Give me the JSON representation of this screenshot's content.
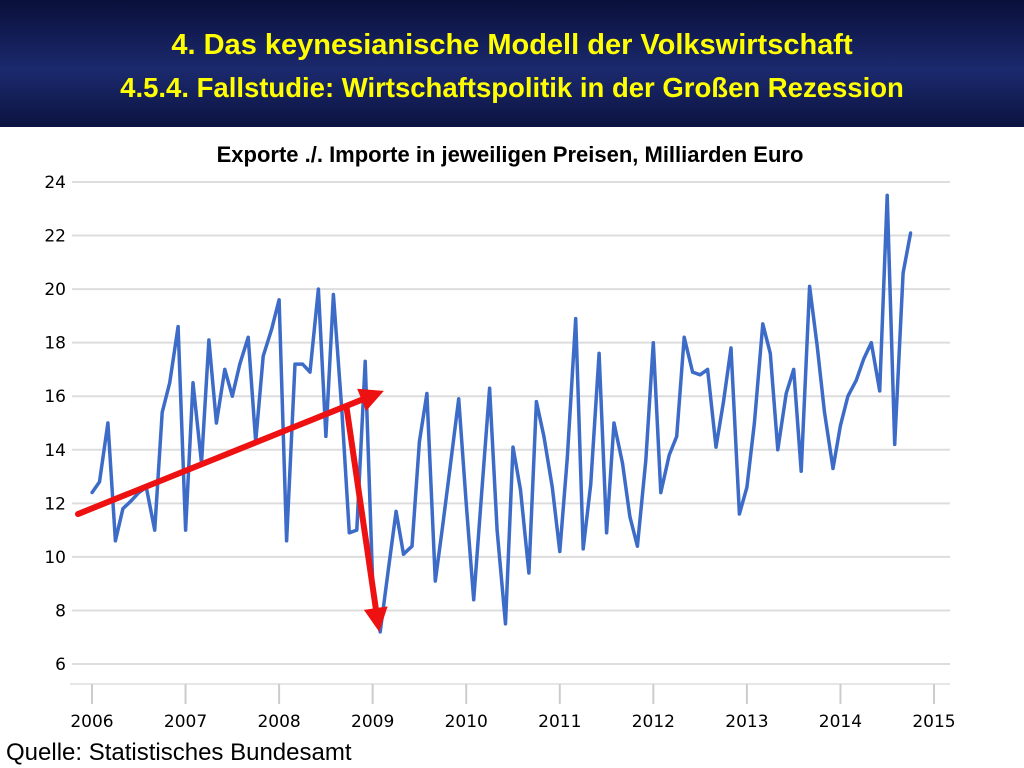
{
  "header": {
    "title": "4. Das keynesianische Modell der Volkswirtschaft",
    "subtitle": "4.5.4.  Fallstudie: Wirtschaftspolitik in der Großen Rezession"
  },
  "footer": {
    "source": "Quelle: Statistisches Bundesamt"
  },
  "colors": {
    "series": "#3d6cc8",
    "arrow": "#ee1111",
    "header_text": "#ffff00",
    "grid": "#dddddd"
  },
  "chart_data": {
    "type": "line",
    "title": "Exporte ./. Importe in jeweiligen Preisen, Milliarden Euro",
    "xlabel": "",
    "ylabel": "",
    "xlim": [
      2006,
      2015
    ],
    "ylim": [
      6,
      24
    ],
    "grid": "horizontal",
    "yticks": [
      6,
      8,
      10,
      12,
      14,
      16,
      18,
      20,
      22,
      24
    ],
    "xticks": [
      2006,
      2007,
      2008,
      2009,
      2010,
      2011,
      2012,
      2013,
      2014,
      2015
    ],
    "series": [
      {
        "name": "",
        "x": [
          2006.0,
          2006.08,
          2006.17,
          2006.25,
          2006.33,
          2006.42,
          2006.5,
          2006.58,
          2006.67,
          2006.75,
          2006.83,
          2006.92,
          2007.0,
          2007.08,
          2007.17,
          2007.25,
          2007.33,
          2007.42,
          2007.5,
          2007.58,
          2007.67,
          2007.75,
          2007.83,
          2007.92,
          2008.0,
          2008.08,
          2008.17,
          2008.25,
          2008.33,
          2008.42,
          2008.5,
          2008.58,
          2008.67,
          2008.75,
          2008.83,
          2008.92,
          2009.0,
          2009.08,
          2009.17,
          2009.25,
          2009.33,
          2009.42,
          2009.5,
          2009.58,
          2009.67,
          2009.75,
          2009.83,
          2009.92,
          2010.0,
          2010.08,
          2010.17,
          2010.25,
          2010.33,
          2010.42,
          2010.5,
          2010.58,
          2010.67,
          2010.75,
          2010.83,
          2010.92,
          2011.0,
          2011.08,
          2011.17,
          2011.25,
          2011.33,
          2011.42,
          2011.5,
          2011.58,
          2011.67,
          2011.75,
          2011.83,
          2011.92,
          2012.0,
          2012.08,
          2012.17,
          2012.25,
          2012.33,
          2012.42,
          2012.5,
          2012.58,
          2012.67,
          2012.75,
          2012.83,
          2012.92,
          2013.0,
          2013.08,
          2013.17,
          2013.25,
          2013.33,
          2013.42,
          2013.5,
          2013.58,
          2013.67,
          2013.75,
          2013.83,
          2013.92,
          2014.0,
          2014.08,
          2014.17,
          2014.25,
          2014.33,
          2014.42,
          2014.5,
          2014.58,
          2014.67,
          2014.75
        ],
        "y": [
          12.4,
          12.8,
          15.0,
          10.6,
          11.8,
          12.1,
          12.4,
          12.6,
          11.0,
          15.4,
          16.5,
          18.6,
          11.0,
          16.5,
          13.5,
          18.1,
          15.0,
          17.0,
          16.0,
          17.2,
          18.2,
          14.3,
          17.5,
          18.5,
          19.6,
          10.6,
          17.2,
          17.2,
          16.9,
          20.0,
          14.5,
          19.8,
          15.5,
          10.9,
          11.0,
          17.3,
          9.0,
          7.2,
          9.6,
          11.7,
          10.1,
          10.4,
          14.3,
          16.1,
          9.1,
          11.2,
          13.4,
          15.9,
          12.0,
          8.4,
          12.6,
          16.3,
          11.0,
          7.5,
          14.1,
          12.5,
          9.4,
          15.8,
          14.5,
          12.6,
          10.2,
          13.7,
          18.9,
          10.3,
          12.7,
          17.6,
          10.9,
          15.0,
          13.5,
          11.5,
          10.4,
          13.6,
          18.0,
          12.4,
          13.8,
          14.5,
          18.2,
          16.9,
          16.8,
          17.0,
          14.1,
          15.8,
          17.8,
          11.6,
          12.6,
          15.0,
          18.7,
          17.6,
          14.0,
          16.1,
          17.0,
          13.2,
          20.1,
          17.9,
          15.4,
          13.3,
          14.9,
          16.0,
          16.6,
          17.4,
          18.0,
          16.2,
          23.5,
          14.2,
          20.6,
          22.1
        ]
      }
    ],
    "annotations": [
      {
        "type": "arrow",
        "from": [
          2005.85,
          11.6
        ],
        "to": [
          2009.12,
          16.2
        ]
      },
      {
        "type": "arrow",
        "from": [
          2008.72,
          15.6
        ],
        "to": [
          2009.07,
          7.2
        ]
      }
    ]
  }
}
